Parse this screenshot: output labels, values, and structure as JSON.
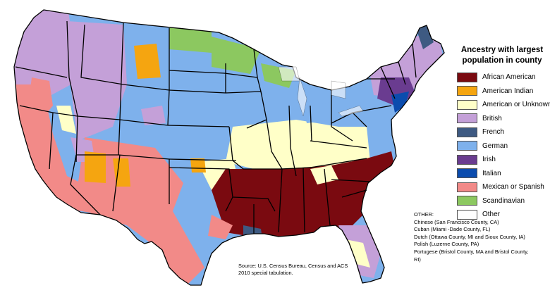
{
  "legend": {
    "title": "Ancestry with largest population in county",
    "items": [
      {
        "label": "African American",
        "color": "#7a0a10"
      },
      {
        "label": "American Indian",
        "color": "#f5a510"
      },
      {
        "label": "American or Unknown",
        "color": "#ffffc8"
      },
      {
        "label": "British",
        "color": "#c4a0d8"
      },
      {
        "label": "French",
        "color": "#3e5a82"
      },
      {
        "label": "German",
        "color": "#7eb1ec"
      },
      {
        "label": "Irish",
        "color": "#6a3c90"
      },
      {
        "label": "Italian",
        "color": "#0b4cae"
      },
      {
        "label": "Mexican or Spanish",
        "color": "#f28a88"
      },
      {
        "label": "Scandinavian",
        "color": "#8cc860"
      },
      {
        "label": "Other",
        "color": "#ffffff"
      }
    ]
  },
  "other_note": {
    "heading": "OTHER:",
    "lines": [
      "Chinese (San Francisco County, CA)",
      "Cuban (Miami -Dade County, FL)",
      "Dutch (Ottawa County, MI and Sioux County, IA)",
      "Polish (Luzerne County, PA)",
      "Portugese (Bristol County, MA and Bristol County,",
      "RI)"
    ]
  },
  "source": {
    "line1": "Source: U.S. Census Bureau, Census and ACS",
    "line2": "2010 special tabulation."
  }
}
